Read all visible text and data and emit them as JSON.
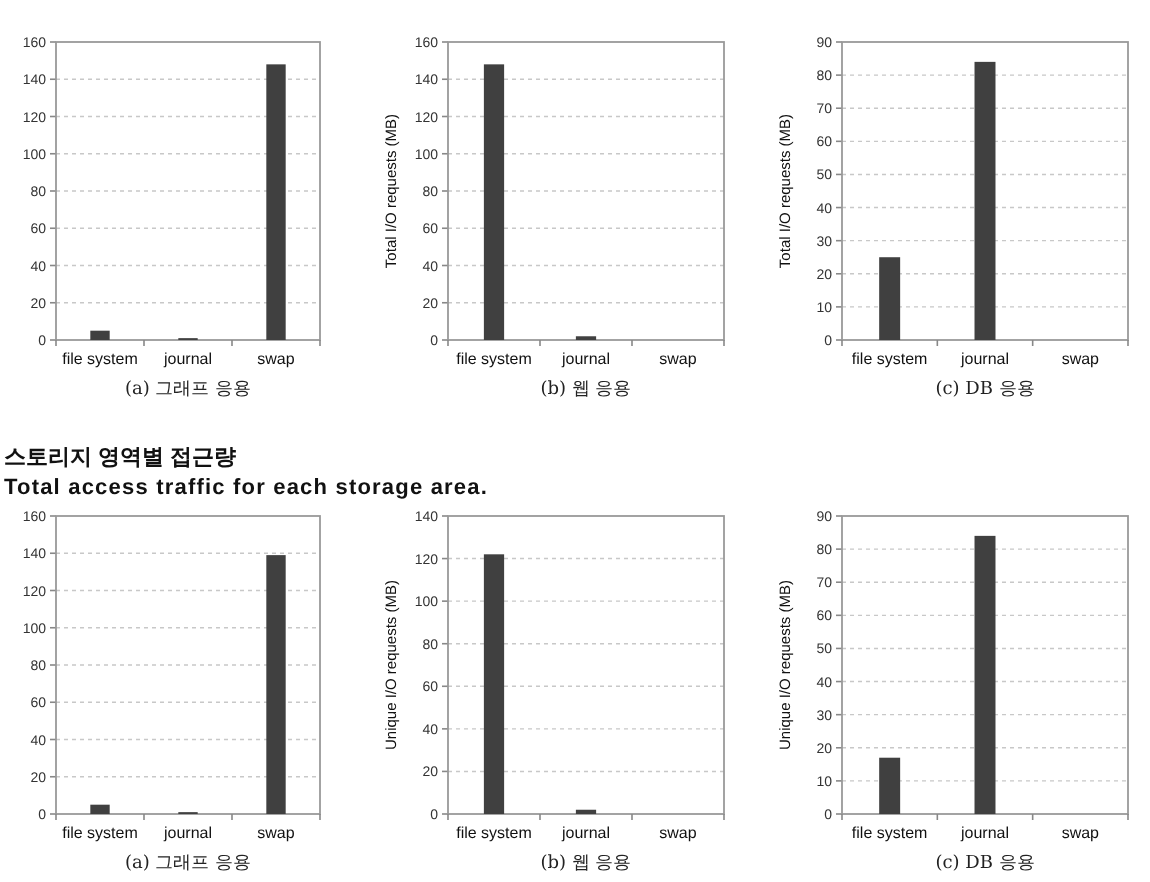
{
  "chart_data": [
    {
      "type": "bar",
      "categories": [
        "file system",
        "journal",
        "swap"
      ],
      "values": [
        5,
        1,
        148
      ],
      "color": "#404040",
      "ylim": [
        0,
        160
      ],
      "yticks": [
        0,
        20,
        40,
        60,
        80,
        100,
        120,
        140,
        160
      ],
      "grid": "y",
      "annotations": [
        "(a) 그래프 응용"
      ]
    },
    {
      "type": "bar",
      "categories": [
        "file system",
        "journal",
        "swap"
      ],
      "values": [
        148,
        2,
        0
      ],
      "color": "#404040",
      "ylim": [
        0,
        160
      ],
      "yticks": [
        0,
        20,
        40,
        60,
        80,
        100,
        120,
        140,
        160
      ],
      "ylabel": "Total I/O requests (MB)",
      "grid": "y",
      "annotations": [
        "(b) 웹 응용"
      ]
    },
    {
      "type": "bar",
      "categories": [
        "file system",
        "journal",
        "swap"
      ],
      "values": [
        25,
        84,
        0
      ],
      "color": "#404040",
      "ylim": [
        0,
        90
      ],
      "yticks": [
        0,
        10,
        20,
        30,
        40,
        50,
        60,
        70,
        80,
        90
      ],
      "ylabel": "Total I/O requests (MB)",
      "grid": "y",
      "annotations": [
        "(c) DB 응용"
      ]
    },
    {
      "type": "bar",
      "title": "스토리지 영역별 접근량",
      "subtitle": "Total access traffic for each storage area.",
      "categories": [
        "file system",
        "journal",
        "swap"
      ],
      "values": [
        5,
        1,
        139
      ],
      "color": "#404040",
      "ylim": [
        0,
        160
      ],
      "yticks": [
        0,
        20,
        40,
        60,
        80,
        100,
        120,
        140,
        160
      ],
      "grid": "y",
      "annotations": [
        "(a) 그래프 응용"
      ]
    },
    {
      "type": "bar",
      "categories": [
        "file system",
        "journal",
        "swap"
      ],
      "values": [
        122,
        2,
        0
      ],
      "color": "#404040",
      "ylim": [
        0,
        140
      ],
      "yticks": [
        0,
        20,
        40,
        60,
        80,
        100,
        120,
        140
      ],
      "ylabel": "Unique I/O requests (MB)",
      "grid": "y",
      "annotations": [
        "(b) 웹 응용"
      ]
    },
    {
      "type": "bar",
      "categories": [
        "file system",
        "journal",
        "swap"
      ],
      "values": [
        17,
        84,
        0
      ],
      "color": "#404040",
      "ylim": [
        0,
        90
      ],
      "yticks": [
        0,
        10,
        20,
        30,
        40,
        50,
        60,
        70,
        80,
        90
      ],
      "ylabel": "Unique I/O requests (MB)",
      "grid": "y",
      "annotations": [
        "(c) DB 응용"
      ]
    }
  ]
}
